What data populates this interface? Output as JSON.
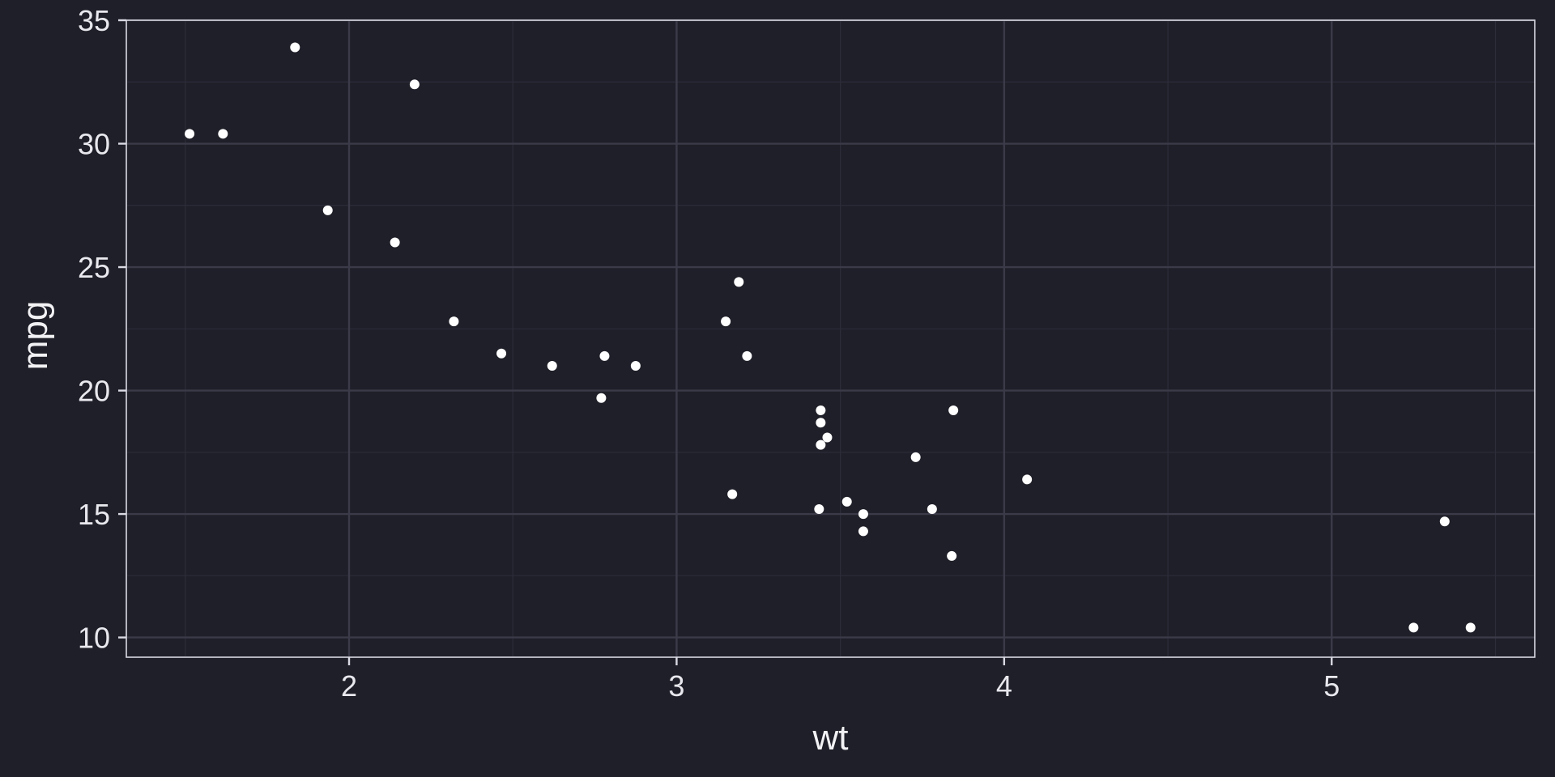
{
  "chart_data": {
    "type": "scatter",
    "title": "",
    "xlabel": "wt",
    "ylabel": "mpg",
    "xlim": [
      1.32,
      5.62
    ],
    "ylim": [
      9.2,
      35
    ],
    "x_ticks": [
      2,
      3,
      4,
      5
    ],
    "y_ticks": [
      10,
      15,
      20,
      25,
      30,
      35
    ],
    "grid": true,
    "legend": "none",
    "colors": {
      "background": "#1f1f29",
      "panel": "#1f1f29",
      "grid_major": "#3a3a49",
      "grid_minor": "#2d2d3a",
      "border": "#d9d9e3",
      "point": "#ffffff",
      "text": "#e8e8ee"
    },
    "points": [
      {
        "x": 2.62,
        "y": 21.0
      },
      {
        "x": 2.875,
        "y": 21.0
      },
      {
        "x": 2.32,
        "y": 22.8
      },
      {
        "x": 3.215,
        "y": 21.4
      },
      {
        "x": 3.44,
        "y": 18.7
      },
      {
        "x": 3.46,
        "y": 18.1
      },
      {
        "x": 3.57,
        "y": 14.3
      },
      {
        "x": 3.19,
        "y": 24.4
      },
      {
        "x": 3.15,
        "y": 22.8
      },
      {
        "x": 3.44,
        "y": 19.2
      },
      {
        "x": 3.44,
        "y": 17.8
      },
      {
        "x": 4.07,
        "y": 16.4
      },
      {
        "x": 3.73,
        "y": 17.3
      },
      {
        "x": 3.78,
        "y": 15.2
      },
      {
        "x": 5.25,
        "y": 10.4
      },
      {
        "x": 5.424,
        "y": 10.4
      },
      {
        "x": 5.345,
        "y": 14.7
      },
      {
        "x": 2.2,
        "y": 32.4
      },
      {
        "x": 1.615,
        "y": 30.4
      },
      {
        "x": 1.835,
        "y": 33.9
      },
      {
        "x": 2.465,
        "y": 21.5
      },
      {
        "x": 3.52,
        "y": 15.5
      },
      {
        "x": 3.435,
        "y": 15.2
      },
      {
        "x": 3.84,
        "y": 13.3
      },
      {
        "x": 3.845,
        "y": 19.2
      },
      {
        "x": 1.935,
        "y": 27.3
      },
      {
        "x": 2.14,
        "y": 26.0
      },
      {
        "x": 1.513,
        "y": 30.4
      },
      {
        "x": 3.17,
        "y": 15.8
      },
      {
        "x": 2.77,
        "y": 19.7
      },
      {
        "x": 3.57,
        "y": 15.0
      },
      {
        "x": 2.78,
        "y": 21.4
      }
    ]
  }
}
